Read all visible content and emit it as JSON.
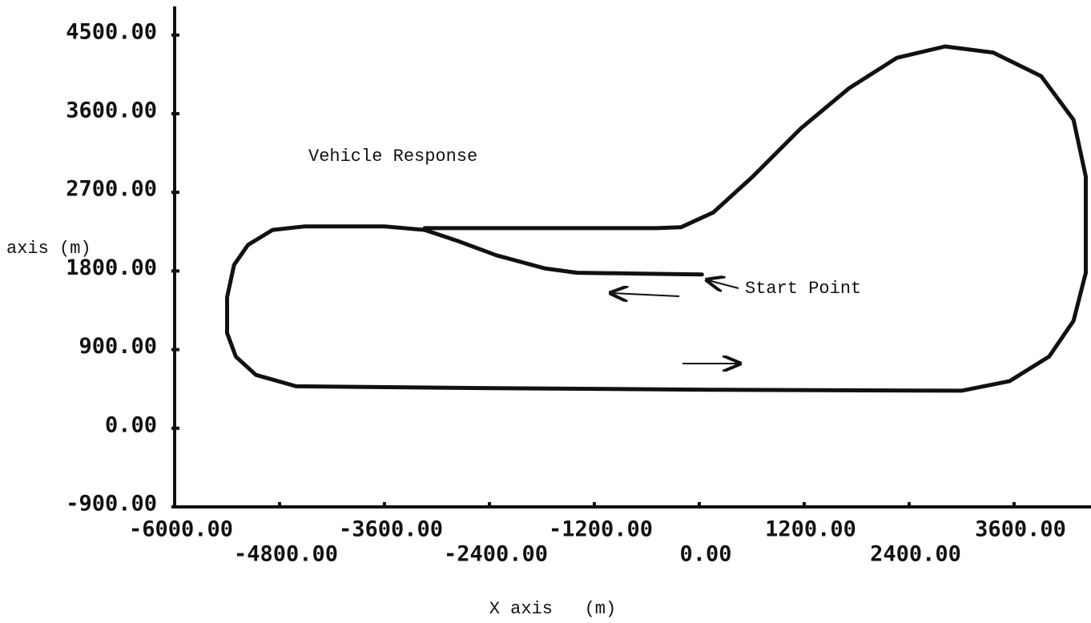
{
  "chart_data": {
    "type": "line",
    "title": "Vehicle Response",
    "xlabel": "X axis   (m)",
    "ylabel": "axis (m)",
    "annotations": [
      "Start Point"
    ],
    "color": "#111111",
    "x": [
      30,
      -670,
      -1400,
      -1770,
      -2320,
      -2780,
      -3140,
      -3600,
      -4520,
      -4880,
      -5160,
      -5320,
      -5400,
      -5400,
      -5300,
      -5070,
      -4610,
      -2500,
      250,
      3000,
      3550,
      4000,
      4280,
      4420,
      4420,
      4280,
      3910,
      3360,
      2810,
      2260,
      1710,
      1160,
      610,
      160,
      -210,
      -490,
      -1590,
      -3140
    ],
    "values": [
      1760,
      1770,
      1780,
      1830,
      1980,
      2150,
      2270,
      2310,
      2310,
      2270,
      2100,
      1870,
      1500,
      1090,
      820,
      610,
      480,
      460,
      440,
      430,
      540,
      820,
      1230,
      1780,
      2880,
      3530,
      4030,
      4300,
      4370,
      4240,
      3890,
      3430,
      2880,
      2470,
      2300,
      2290,
      2290,
      2290
    ],
    "xlim": [
      -6000,
      4500
    ],
    "ylim": [
      -900,
      4800
    ],
    "xticks": [
      {
        "value": -6000,
        "label": "-6000.00"
      },
      {
        "value": -4800,
        "label": "-4800.00"
      },
      {
        "value": -3600,
        "label": "-3600.00"
      },
      {
        "value": -2400,
        "label": "-2400.00"
      },
      {
        "value": -1200,
        "label": "-1200.00"
      },
      {
        "value": 0,
        "label": "0.00"
      },
      {
        "value": 1200,
        "label": "1200.00"
      },
      {
        "value": 2400,
        "label": "2400.00"
      },
      {
        "value": 3600,
        "label": "3600.00"
      }
    ],
    "yticks": [
      {
        "value": -900,
        "label": "-900.00"
      },
      {
        "value": 0,
        "label": "0.00"
      },
      {
        "value": 900,
        "label": "900.00"
      },
      {
        "value": 1800,
        "label": "1800.00"
      },
      {
        "value": 2700,
        "label": "2700.00"
      },
      {
        "value": 3600,
        "label": "3600.00"
      },
      {
        "value": 4500,
        "label": "4500.00"
      }
    ],
    "grid": false
  }
}
